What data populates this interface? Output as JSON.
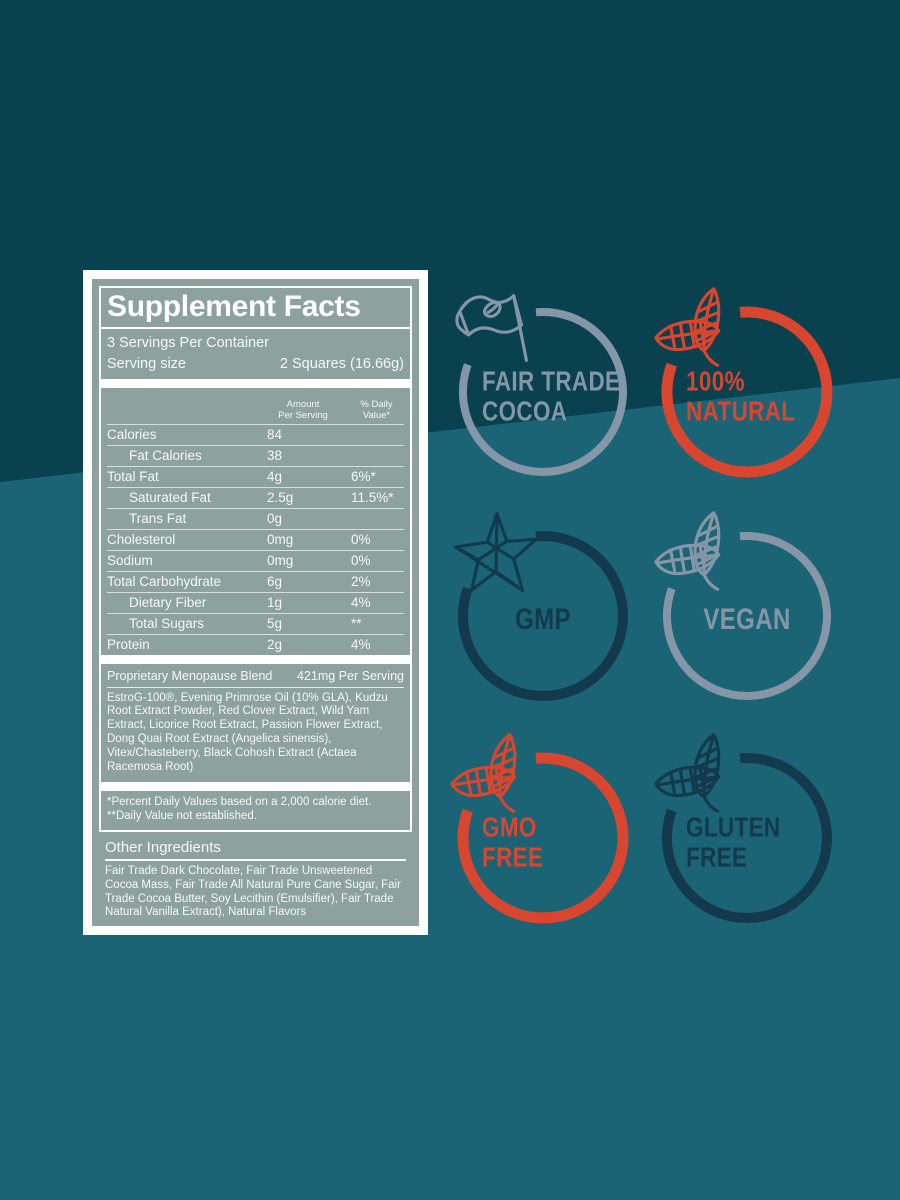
{
  "product_art": {
    "colors": {
      "bg_top": "#09414f",
      "bg_bottom": "#1a6476",
      "label_bg": "#8da19f",
      "label_frame": "#ffffff",
      "badge_gray": "#8597a7",
      "badge_red": "#d8462f",
      "badge_dark": "#123a4c"
    },
    "supplement_label": {
      "title": "Supplement Facts",
      "servings_per_container": "3 Servings Per Container",
      "serving_size_label": "Serving size",
      "serving_size_value": "2 Squares (16.66g)",
      "col_amount_line1": "Amount",
      "col_amount_line2": "Per Serving",
      "col_daily_value": "% Daily Value*",
      "nutrients": [
        {
          "label": "Calories",
          "amount": "84",
          "dv": "",
          "indent": false
        },
        {
          "label": "Fat Calories",
          "amount": "38",
          "dv": "",
          "indent": true
        },
        {
          "label": "Total Fat",
          "amount": "4g",
          "dv": "6%*",
          "indent": false
        },
        {
          "label": "Saturated Fat",
          "amount": "2.5g",
          "dv": "11.5%*",
          "indent": true
        },
        {
          "label": "Trans Fat",
          "amount": "0g",
          "dv": "",
          "indent": true
        },
        {
          "label": "Cholesterol",
          "amount": "0mg",
          "dv": "0%",
          "indent": false
        },
        {
          "label": "Sodium",
          "amount": "0mg",
          "dv": "0%",
          "indent": false
        },
        {
          "label": "Total Carbohydrate",
          "amount": "6g",
          "dv": "2%",
          "indent": false
        },
        {
          "label": "Dietary Fiber",
          "amount": "1g",
          "dv": "4%",
          "indent": true
        },
        {
          "label": "Total Sugars",
          "amount": "5g",
          "dv": "**",
          "indent": true
        },
        {
          "label": "Protein",
          "amount": "2g",
          "dv": "4%",
          "indent": false
        }
      ],
      "blend_name": "Proprietary Menopause Blend",
      "blend_amount": "421mg Per Serving",
      "blend_ingredients": "EstroG-100®, Evening Primrose Oil (10% GLA), Kudzu Root Extract Powder, Red Clover Extract, Wild Yam Extract, Licorice Root Extract, Passion Flower Extract, Dong Quai Root Extract (Angelica sinensis), Vitex/Chasteberry, Black Cohosh Extract (Actaea Racemosa Root)",
      "footnote_line1": "*Percent Daily Values based on a 2,000 calorie diet.",
      "footnote_line2": "**Daily Value not established.",
      "other_ingredients_title": "Other Ingredients",
      "other_ingredients_text": "Fair Trade Dark Chocolate, Fair Trade Unsweetened Cocoa Mass, Fair Trade All Natural Pure Cane Sugar, Fair Trade Cocoa Butter, Soy Lecithin (Emulsifier), Fair Trade Natural Vanilla Extract), Natural Flavors"
    },
    "badges": [
      {
        "name": "fair-trade-cocoa",
        "lines": [
          "FAIR TRADE",
          "COCOA"
        ],
        "color_key": "badge_gray",
        "icon": "flag-cocoa",
        "align": "left"
      },
      {
        "name": "100-natural",
        "lines": [
          "100%",
          "NATURAL"
        ],
        "color_key": "badge_red",
        "icon": "leaves",
        "align": "left"
      },
      {
        "name": "gmp",
        "lines": [
          "GMP"
        ],
        "color_key": "badge_dark",
        "icon": "star",
        "align": "center"
      },
      {
        "name": "vegan",
        "lines": [
          "VEGAN"
        ],
        "color_key": "badge_gray",
        "icon": "leaves",
        "align": "center"
      },
      {
        "name": "gmo-free",
        "lines": [
          "GMO",
          "FREE"
        ],
        "color_key": "badge_red",
        "icon": "leaves",
        "align": "left"
      },
      {
        "name": "gluten-free",
        "lines": [
          "GLUTEN",
          "FREE"
        ],
        "color_key": "badge_dark",
        "icon": "leaves",
        "align": "left"
      }
    ]
  }
}
